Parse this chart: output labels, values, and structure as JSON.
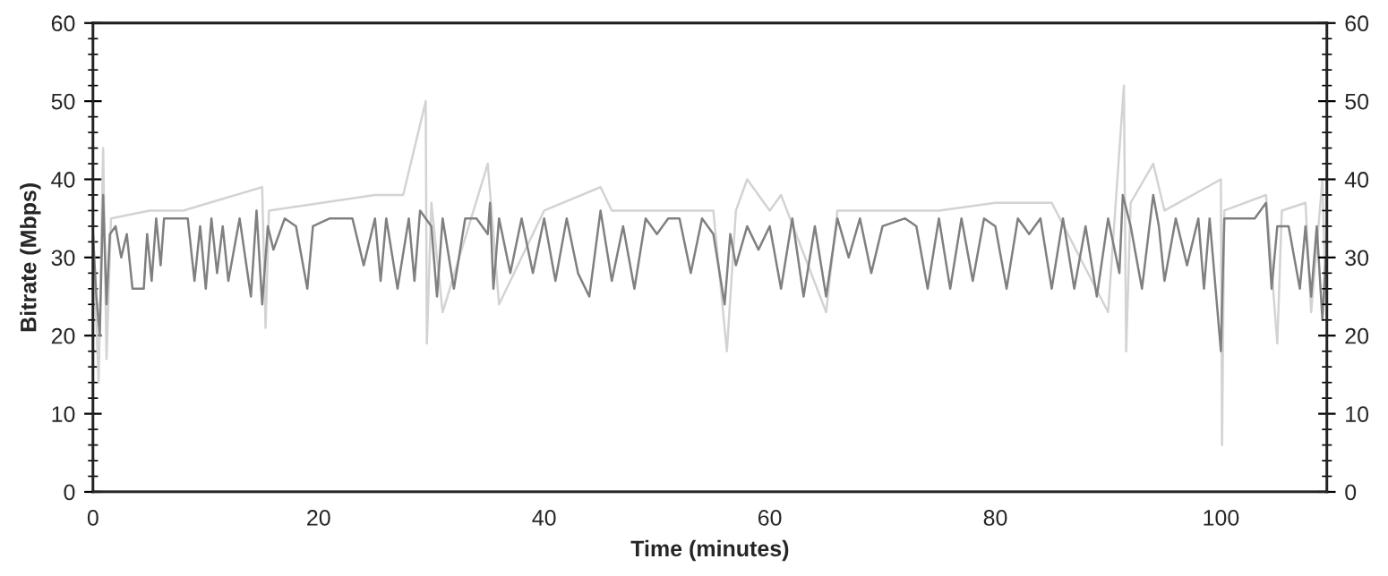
{
  "chart_data": {
    "type": "line",
    "xlabel": "Time (minutes)",
    "ylabel": "Bitrate (Mbps)",
    "xlim": [
      0,
      109.4
    ],
    "xticks": [
      0,
      20,
      40,
      60,
      80,
      100
    ],
    "ylim": [
      0,
      60
    ],
    "yticks": [
      0,
      10,
      20,
      30,
      40,
      50,
      60
    ],
    "y2lim": [
      0,
      60
    ],
    "y2ticks": [
      0,
      10,
      20,
      30,
      40,
      50,
      60
    ],
    "grid": false,
    "marker": "none",
    "line_style": "solid",
    "series": [
      {
        "color": "#d3d3d3",
        "x": [
          0,
          0.5,
          0.9,
          1.2,
          1.6,
          5,
          8,
          15,
          15.3,
          15.6,
          25,
          27.5,
          29.5,
          29.6,
          30,
          31,
          35,
          36,
          40,
          45,
          46,
          55,
          56.2,
          57,
          58,
          60,
          61,
          65,
          66,
          75,
          80,
          85,
          90,
          91.4,
          91.6,
          92,
          94,
          95,
          100,
          100.1,
          100.3,
          104,
          105,
          105.4,
          107.5,
          108,
          109,
          109.3
        ],
        "values": [
          33,
          14,
          44,
          17,
          35,
          36,
          36,
          39,
          21,
          36,
          38,
          38,
          50,
          19,
          37,
          23,
          42,
          24,
          36,
          39,
          36,
          36,
          18,
          36,
          40,
          36,
          38,
          23,
          36,
          36,
          37,
          37,
          23,
          52,
          18,
          37,
          42,
          36,
          40,
          6,
          36,
          38,
          19,
          36,
          37,
          23,
          40,
          24
        ]
      },
      {
        "color": "#808080",
        "x": [
          0,
          0.3,
          0.6,
          0.9,
          1.2,
          1.5,
          2,
          2.5,
          3,
          3.5,
          4.5,
          4.8,
          5.2,
          5.6,
          6,
          6.3,
          8,
          8.4,
          9,
          9.5,
          10,
          10.5,
          11,
          11.5,
          12,
          13,
          14,
          14.5,
          15,
          15.5,
          16,
          17,
          18,
          19,
          19.5,
          21,
          23,
          24,
          25,
          25.5,
          26,
          27,
          28,
          28.5,
          29,
          30,
          30.5,
          31,
          32,
          33,
          34,
          35,
          35.2,
          35.5,
          36,
          37,
          38,
          39,
          40,
          41,
          42,
          43,
          44,
          45,
          46,
          47,
          48,
          49,
          50,
          51,
          52,
          53,
          54,
          55,
          56,
          56.5,
          57,
          58,
          59,
          60,
          61,
          62,
          63,
          64,
          65,
          66,
          67,
          68,
          69,
          70,
          72,
          73,
          74,
          75,
          76,
          77,
          78,
          79,
          80,
          81,
          82,
          83,
          84,
          85,
          86,
          87,
          88,
          89,
          90,
          91,
          91.3,
          92,
          93,
          94,
          94.5,
          95,
          96,
          97,
          98,
          98.5,
          99,
          100,
          100.3,
          102,
          103,
          104,
          104.5,
          105,
          106,
          107,
          107.5,
          108,
          108.5,
          109,
          109.3
        ],
        "values": [
          33,
          25,
          20,
          38,
          24,
          33,
          34,
          30,
          33,
          26,
          26,
          33,
          27,
          35,
          29,
          35,
          35,
          35,
          27,
          34,
          26,
          35,
          28,
          34,
          27,
          35,
          25,
          36,
          24,
          34,
          31,
          35,
          34,
          26,
          34,
          35,
          35,
          29,
          35,
          27,
          35,
          26,
          35,
          27,
          36,
          34,
          25,
          35,
          26,
          35,
          35,
          33,
          37,
          26,
          35,
          28,
          35,
          28,
          35,
          27,
          35,
          28,
          25,
          36,
          27,
          34,
          26,
          35,
          33,
          35,
          35,
          28,
          35,
          33,
          24,
          33,
          29,
          34,
          31,
          34,
          26,
          35,
          25,
          34,
          25,
          35,
          30,
          35,
          28,
          34,
          35,
          34,
          26,
          35,
          26,
          35,
          27,
          35,
          34,
          26,
          35,
          33,
          35,
          26,
          35,
          26,
          34,
          25,
          35,
          28,
          38,
          34,
          26,
          38,
          34,
          27,
          35,
          29,
          35,
          26,
          35,
          18,
          35,
          35,
          35,
          37,
          26,
          34,
          34,
          26,
          34,
          25,
          34,
          22,
          30
        ]
      }
    ]
  }
}
